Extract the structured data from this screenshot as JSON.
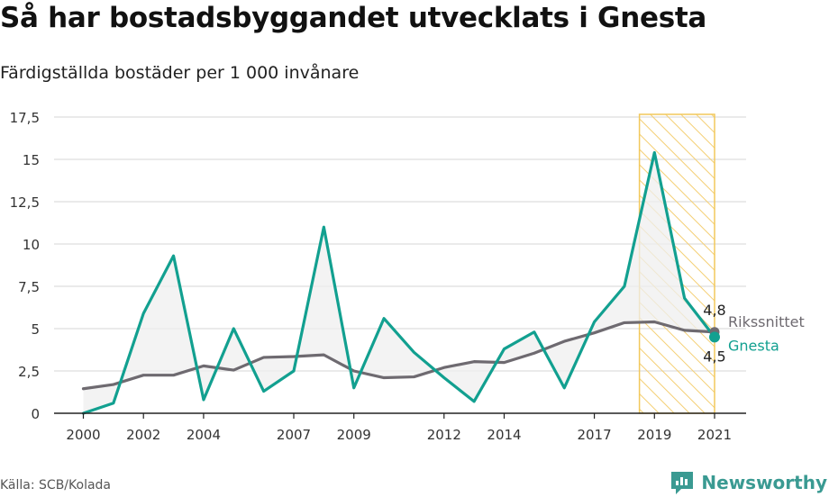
{
  "header": {
    "title": "Så har bostadsbyggandet utvecklats i Gnesta",
    "subtitle": "Färdigställda bostäder per 1 000 invånare"
  },
  "footer": {
    "source": "Källa: SCB/Kolada",
    "brand": "Newsworthy"
  },
  "colors": {
    "gnesta": "#12a090",
    "riket": "#6e6a70",
    "highlight_fill": "#fbe6b3",
    "highlight_stroke": "#f2c85b",
    "grid": "#dddddd",
    "between_fill": "#efefef",
    "brand": "#3a9a92"
  },
  "chart_data": {
    "type": "line",
    "x": [
      2000,
      2001,
      2002,
      2003,
      2004,
      2005,
      2006,
      2007,
      2008,
      2009,
      2010,
      2011,
      2012,
      2013,
      2014,
      2015,
      2016,
      2017,
      2018,
      2019,
      2020,
      2021
    ],
    "x_tick_labels": [
      "2000",
      "2002",
      "2004",
      "2007",
      "2009",
      "2012",
      "2014",
      "2017",
      "2019",
      "2021"
    ],
    "y_tick_labels": [
      "0",
      "2,5",
      "5",
      "7,5",
      "10",
      "12,5",
      "15",
      "17,5"
    ],
    "ylim": [
      0,
      17.5
    ],
    "grid": true,
    "highlight_range": [
      2018.5,
      2021
    ],
    "series": [
      {
        "name": "Rikssnittet",
        "values": [
          1.45,
          1.7,
          2.25,
          2.25,
          2.8,
          2.55,
          3.3,
          3.35,
          3.45,
          2.5,
          2.1,
          2.15,
          2.7,
          3.05,
          3.0,
          3.55,
          4.25,
          4.75,
          5.35,
          5.4,
          4.9,
          4.8
        ],
        "end_label": "4,8"
      },
      {
        "name": "Gnesta",
        "values": [
          0.0,
          0.6,
          5.9,
          9.3,
          0.8,
          5.0,
          1.3,
          2.5,
          11.0,
          1.5,
          5.6,
          3.6,
          2.1,
          0.7,
          3.8,
          4.8,
          1.5,
          5.4,
          7.5,
          15.4,
          6.8,
          4.5
        ],
        "end_label": "4,5"
      }
    ]
  }
}
